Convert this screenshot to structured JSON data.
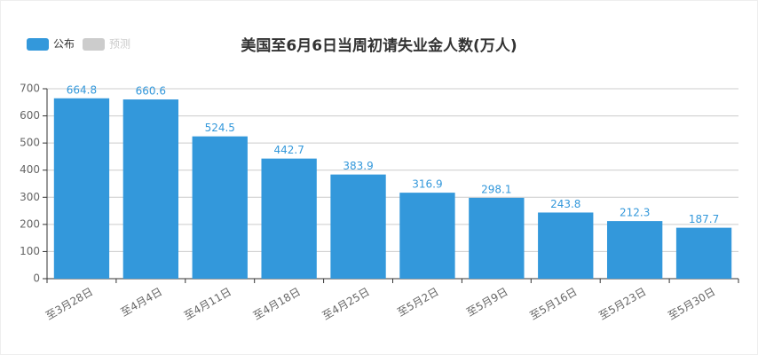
{
  "chart_data": {
    "type": "bar",
    "title": "美国至6月6日当周初请失业金人数(万人)",
    "categories": [
      "至3月28日",
      "至4月4日",
      "至4月11日",
      "至4月18日",
      "至4月25日",
      "至5月2日",
      "至5月9日",
      "至5月16日",
      "至5月23日",
      "至5月30日"
    ],
    "series": [
      {
        "name": "公布",
        "color": "#3398db",
        "values": [
          664.8,
          660.6,
          524.5,
          442.7,
          383.9,
          316.9,
          298.1,
          243.8,
          212.3,
          187.7
        ]
      },
      {
        "name": "预测",
        "color": "#cccccc",
        "values": [
          null,
          null,
          null,
          null,
          null,
          null,
          null,
          null,
          null,
          null
        ],
        "inactive": true
      }
    ],
    "ylim": [
      0,
      700
    ],
    "yticks": [
      0,
      100,
      200,
      300,
      400,
      500,
      600,
      700
    ],
    "grid": true
  }
}
